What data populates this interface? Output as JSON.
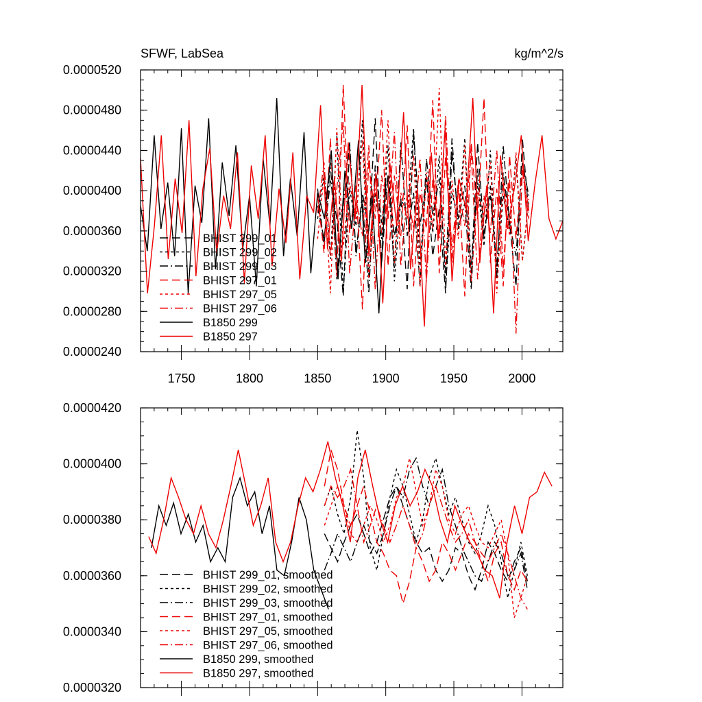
{
  "figure": {
    "title_left": "SFWF, LabSea",
    "title_right": "kg/m^2/s"
  },
  "colors": {
    "black": "#000000",
    "red": "#ee0000"
  },
  "chart_data": [
    {
      "type": "line",
      "panel": "top",
      "title": "SFWF, LabSea",
      "units": "kg/m^2/s",
      "xlim": [
        1720,
        2030
      ],
      "ylim": [
        2.4e-05,
        5.2e-05
      ],
      "x_ticks": [
        1750,
        1800,
        1850,
        1900,
        1950,
        2000
      ],
      "x_tick_labels": [
        "1750",
        "1800",
        "1850",
        "1900",
        "1950",
        "2000"
      ],
      "y_ticks": [
        2.4e-05,
        2.8e-05,
        3.2e-05,
        3.6e-05,
        4e-05,
        4.4e-05,
        4.8e-05,
        5.2e-05
      ],
      "y_tick_labels": [
        "0.0000240",
        "0.0000280",
        "0.0000320",
        "0.0000360",
        "0.0000400",
        "0.0000440",
        "0.0000480",
        "0.0000520"
      ],
      "legend_position": "lower-left",
      "series": [
        {
          "name": "BHIST 299_01",
          "color": "black",
          "dash": "long-dash",
          "x_start": 1850,
          "x_end": 2005,
          "values": [
            3.85e-05,
            3.52e-05,
            4.1e-05,
            3.72e-05,
            2.95e-05,
            4.45e-05,
            3.38e-05,
            3.98e-05,
            3.6e-05,
            4.72e-05,
            3.28e-05,
            4.15e-05,
            3.55e-05,
            3.92e-05,
            3.02e-05,
            4.58e-05,
            3.65e-05,
            4.12e-05,
            3.35e-05,
            3.82e-05,
            2.98e-05,
            4.38e-05,
            3.72e-05,
            4.05e-05,
            3.18e-05,
            4.48e-05,
            3.58e-05,
            3.95e-05,
            3.25e-05,
            4.18e-05,
            3.68e-05,
            3.05e-05,
            4.52e-05,
            3.78e-05
          ]
        },
        {
          "name": "BHIST 299_02",
          "color": "black",
          "dash": "short-dash",
          "x_start": 1850,
          "x_end": 2005,
          "values": [
            3.72e-05,
            4.18e-05,
            3.32e-05,
            4.55e-05,
            2.98e-05,
            4.02e-05,
            3.65e-05,
            4.7e-05,
            3.15e-05,
            3.98e-05,
            3.52e-05,
            4.45e-05,
            3.1e-05,
            3.92e-05,
            3.78e-05,
            4.62e-05,
            3.25e-05,
            4.15e-05,
            3.58e-05,
            4.35e-05,
            3.05e-05,
            3.98e-05,
            3.72e-05,
            4.52e-05,
            3.2e-05,
            4.08e-05,
            3.45e-05,
            4.4e-05,
            3.12e-05,
            3.95e-05,
            3.62e-05,
            4.32e-05,
            3.3e-05,
            3.9e-05
          ]
        },
        {
          "name": "BHIST 299_03",
          "color": "black",
          "dash": "dash-dot",
          "x_start": 1850,
          "x_end": 2005,
          "values": [
            4.02e-05,
            3.45e-05,
            4.28e-05,
            3.12e-05,
            3.85e-05,
            4.48e-05,
            3.35e-05,
            3.92e-05,
            2.98e-05,
            4.25e-05,
            3.68e-05,
            4.15e-05,
            3.22e-05,
            4.48e-05,
            3.55e-05,
            3.98e-05,
            3.05e-05,
            4.32e-05,
            3.75e-05,
            4.12e-05,
            3.18e-05,
            4.52e-05,
            3.62e-05,
            3.88e-05,
            3.02e-05,
            4.22e-05,
            3.52e-05,
            4.05e-05,
            3.15e-05,
            4.45e-05,
            3.68e-05,
            3.35e-05,
            4.28e-05,
            3.95e-05
          ]
        },
        {
          "name": "BHIST 297_01",
          "color": "red",
          "dash": "long-dash",
          "x_start": 1850,
          "x_end": 2005,
          "values": [
            3.95e-05,
            3.38e-05,
            4.52e-05,
            3.15e-05,
            5.05e-05,
            3.58e-05,
            4.05e-05,
            2.82e-05,
            4.3e-05,
            3.72e-05,
            4.8e-05,
            3.25e-05,
            4.15e-05,
            3.55e-05,
            4.65e-05,
            3.05e-05,
            3.98e-05,
            3.62e-05,
            4.9e-05,
            3.18e-05,
            4.35e-05,
            3.42e-05,
            4.1e-05,
            2.95e-05,
            4.48e-05,
            3.72e-05,
            4.92e-05,
            3.28e-05,
            4.02e-05,
            3.05e-05,
            4.35e-05,
            3.52e-05,
            4.25e-05,
            3.8e-05
          ]
        },
        {
          "name": "BHIST 297_05",
          "color": "red",
          "dash": "short-dash",
          "x_start": 1850,
          "x_end": 2005,
          "values": [
            3.52e-05,
            4.15e-05,
            2.98e-05,
            4.62e-05,
            3.45e-05,
            4.08e-05,
            3.72e-05,
            4.5e-05,
            3.12e-05,
            4.02e-05,
            3.58e-05,
            4.7e-05,
            3.28e-05,
            3.98e-05,
            3.72e-05,
            4.35e-05,
            3.05e-05,
            4.18e-05,
            3.62e-05,
            5.02e-05,
            3.25e-05,
            4.1e-05,
            3.52e-05,
            4.45e-05,
            3.1e-05,
            3.98e-05,
            3.75e-05,
            4.28e-05,
            2.98e-05,
            4.12e-05,
            3.55e-05,
            4.38e-05,
            3.3e-05,
            3.92e-05
          ]
        },
        {
          "name": "BHIST 297_06",
          "color": "red",
          "dash": "dash-dot",
          "x_start": 1850,
          "x_end": 2005,
          "values": [
            3.78e-05,
            4.28e-05,
            3.35e-05,
            4.02e-05,
            4.68e-05,
            3.18e-05,
            3.92e-05,
            3.55e-05,
            4.45e-05,
            3.02e-05,
            4.15e-05,
            3.72e-05,
            4.58e-05,
            3.25e-05,
            3.98e-05,
            3.62e-05,
            4.32e-05,
            3.1e-05,
            4.12e-05,
            3.52e-05,
            4.75e-05,
            3.28e-05,
            4.02e-05,
            3.65e-05,
            4.38e-05,
            3.12e-05,
            3.95e-05,
            3.58e-05,
            4.4e-05,
            3.22e-05,
            4.12e-05,
            2.58e-05,
            4.2e-05,
            3.72e-05
          ]
        },
        {
          "name": "B1850 299",
          "color": "black",
          "dash": "solid",
          "x_start": 1720,
          "x_end": 1900,
          "values": [
            3.85e-05,
            3.4e-05,
            4.55e-05,
            3.62e-05,
            4.08e-05,
            3.35e-05,
            4.62e-05,
            2.98e-05,
            4.05e-05,
            3.68e-05,
            4.72e-05,
            3.22e-05,
            4.28e-05,
            3.75e-05,
            4.45e-05,
            3.42e-05,
            3.95e-05,
            3.05e-05,
            4.32e-05,
            3.65e-05,
            4.92e-05,
            3.35e-05,
            4.12e-05,
            3.55e-05,
            4.58e-05,
            3.18e-05,
            3.98e-05,
            3.72e-05,
            4.4e-05,
            3.12e-05,
            4.2e-05,
            3.62e-05,
            4.5e-05,
            3.28e-05,
            3.95e-05,
            2.78e-05,
            4.1e-05
          ]
        },
        {
          "name": "B1850 297",
          "color": "red",
          "dash": "solid",
          "x_start": 1720,
          "x_end": 2030,
          "values": [
            4.32e-05,
            2.98e-05,
            3.65e-05,
            4.55e-05,
            3.32e-05,
            4.12e-05,
            3.58e-05,
            4.7e-05,
            3.15e-05,
            4.02e-05,
            4.42e-05,
            3.38e-05,
            3.95e-05,
            3.62e-05,
            4.38e-05,
            3.08e-05,
            4.25e-05,
            3.72e-05,
            4.55e-05,
            3.25e-05,
            4.02e-05,
            3.48e-05,
            4.38e-05,
            3.12e-05,
            3.95e-05,
            3.78e-05,
            4.85e-05,
            3.42e-05,
            4.12e-05,
            3.3e-05,
            4.48e-05,
            3.72e-05,
            5.05e-05,
            3.35e-05,
            4.18e-05,
            2.88e-05,
            4.28e-05,
            3.65e-05,
            4.78e-05,
            3.22e-05,
            4.02e-05,
            2.65e-05,
            4.38e-05,
            3.52e-05,
            4.62e-05,
            3.1e-05,
            4.12e-05,
            3.82e-05,
            4.92e-05,
            3.28e-05,
            4.05e-05,
            2.78e-05,
            4.35e-05,
            3.62e-05,
            4.02e-05,
            4.55e-05,
            3.5e-05,
            4.08e-05,
            4.55e-05,
            3.72e-05,
            3.52e-05,
            3.7e-05
          ]
        }
      ],
      "legend": [
        "BHIST 299_01",
        "BHIST 299_02",
        "BHIST 299_03",
        "BHIST 297_01",
        "BHIST 297_05",
        "BHIST 297_06",
        "B1850 299",
        "B1850 297"
      ]
    },
    {
      "type": "line",
      "panel": "bottom",
      "xlim": [
        1720,
        2030
      ],
      "ylim": [
        3.2e-05,
        4.2e-05
      ],
      "x_ticks": [
        1750,
        1800,
        1850,
        1900,
        1950,
        2000
      ],
      "y_ticks": [
        3.2e-05,
        3.4e-05,
        3.6e-05,
        3.8e-05,
        4e-05,
        4.2e-05
      ],
      "y_tick_labels": [
        "0.0000320",
        "0.0000340",
        "0.0000360",
        "0.0000380",
        "0.0000400",
        "0.0000420"
      ],
      "legend_position": "lower-left",
      "series": [
        {
          "name": "BHIST 299_01, smoothed",
          "color": "black",
          "dash": "long-dash",
          "x_start": 1855,
          "x_end": 2004,
          "values": [
            3.75e-05,
            3.7e-05,
            3.65e-05,
            3.72e-05,
            3.78e-05,
            3.82e-05,
            3.75e-05,
            3.68e-05,
            3.72e-05,
            3.8e-05,
            3.88e-05,
            3.92e-05,
            3.85e-05,
            3.78e-05,
            3.72e-05,
            3.68e-05,
            3.7e-05,
            3.62e-05,
            3.58e-05,
            3.62e-05,
            3.7e-05,
            3.68e-05,
            3.6e-05,
            3.55e-05,
            3.62e-05,
            3.72e-05,
            3.68e-05,
            3.62e-05,
            3.58e-05,
            3.65e-05,
            3.7e-05,
            3.58e-05
          ]
        },
        {
          "name": "BHIST 299_02, smoothed",
          "color": "black",
          "dash": "short-dash",
          "x_start": 1855,
          "x_end": 2004,
          "values": [
            3.85e-05,
            3.92e-05,
            3.82e-05,
            3.75e-05,
            3.88e-05,
            4.12e-05,
            3.95e-05,
            3.7e-05,
            3.62e-05,
            3.75e-05,
            3.88e-05,
            3.98e-05,
            3.92e-05,
            3.82e-05,
            3.72e-05,
            3.8e-05,
            3.95e-05,
            4.02e-05,
            3.92e-05,
            3.82e-05,
            3.88e-05,
            3.8e-05,
            3.72e-05,
            3.68e-05,
            3.75e-05,
            3.85e-05,
            3.78e-05,
            3.65e-05,
            3.52e-05,
            3.62e-05,
            3.72e-05,
            3.6e-05
          ]
        },
        {
          "name": "BHIST 299_03, smoothed",
          "color": "black",
          "dash": "dash-dot",
          "x_start": 1855,
          "x_end": 2004,
          "values": [
            3.62e-05,
            3.68e-05,
            3.75e-05,
            3.7e-05,
            3.65e-05,
            3.72e-05,
            3.78e-05,
            3.72e-05,
            3.68e-05,
            3.75e-05,
            3.85e-05,
            3.92e-05,
            3.88e-05,
            3.98e-05,
            4.02e-05,
            3.92e-05,
            3.85e-05,
            3.92e-05,
            3.98e-05,
            3.85e-05,
            3.78e-05,
            3.7e-05,
            3.65e-05,
            3.6e-05,
            3.58e-05,
            3.65e-05,
            3.72e-05,
            3.68e-05,
            3.6e-05,
            3.62e-05,
            3.68e-05,
            3.55e-05
          ]
        },
        {
          "name": "BHIST 297_01, smoothed",
          "color": "red",
          "dash": "long-dash",
          "x_start": 1855,
          "x_end": 2004,
          "values": [
            3.92e-05,
            4.05e-05,
            3.98e-05,
            3.85e-05,
            3.78e-05,
            3.85e-05,
            3.92e-05,
            3.82e-05,
            3.72e-05,
            3.68e-05,
            3.62e-05,
            3.6e-05,
            3.5e-05,
            3.58e-05,
            3.7e-05,
            3.65e-05,
            3.58e-05,
            3.62e-05,
            3.72e-05,
            3.68e-05,
            3.62e-05,
            3.68e-05,
            3.75e-05,
            3.72e-05,
            3.65e-05,
            3.58e-05,
            3.68e-05,
            3.72e-05,
            3.6e-05,
            3.55e-05,
            3.62e-05,
            3.58e-05
          ]
        },
        {
          "name": "BHIST 297_05, smoothed",
          "color": "red",
          "dash": "short-dash",
          "x_start": 1855,
          "x_end": 2004,
          "values": [
            3.78e-05,
            3.85e-05,
            3.92e-05,
            3.85e-05,
            3.75e-05,
            3.72e-05,
            3.78e-05,
            3.85e-05,
            3.8e-05,
            3.72e-05,
            3.78e-05,
            3.88e-05,
            3.92e-05,
            4.02e-05,
            3.9e-05,
            3.78e-05,
            3.85e-05,
            3.98e-05,
            3.92e-05,
            3.8e-05,
            3.75e-05,
            3.82e-05,
            3.85e-05,
            3.78e-05,
            3.72e-05,
            3.7e-05,
            3.75e-05,
            3.8e-05,
            3.68e-05,
            3.45e-05,
            3.52e-05,
            3.6e-05
          ]
        },
        {
          "name": "BHIST 297_06, smoothed",
          "color": "red",
          "dash": "dash-dot",
          "x_start": 1855,
          "x_end": 2004,
          "values": [
            3.85e-05,
            3.92e-05,
            3.88e-05,
            3.92e-05,
            3.98e-05,
            3.85e-05,
            3.72e-05,
            3.78e-05,
            3.85e-05,
            3.78e-05,
            3.72e-05,
            3.78e-05,
            3.85e-05,
            3.78e-05,
            3.7e-05,
            3.75e-05,
            3.85e-05,
            3.92e-05,
            3.85e-05,
            3.78e-05,
            3.72e-05,
            3.75e-05,
            3.8e-05,
            3.72e-05,
            3.68e-05,
            3.65e-05,
            3.7e-05,
            3.75e-05,
            3.68e-05,
            3.6e-05,
            3.52e-05,
            3.48e-05
          ]
        },
        {
          "name": "B1850 299, smoothed",
          "color": "black",
          "dash": "solid",
          "x_start": 1728,
          "x_end": 1858,
          "values": [
            3.7e-05,
            3.85e-05,
            3.78e-05,
            3.86e-05,
            3.75e-05,
            3.82e-05,
            3.72e-05,
            3.78e-05,
            3.65e-05,
            3.7e-05,
            3.65e-05,
            3.88e-05,
            3.95e-05,
            3.85e-05,
            3.9e-05,
            3.75e-05,
            3.85e-05,
            3.62e-05,
            3.6e-05,
            3.72e-05,
            3.88e-05,
            3.8e-05,
            3.62e-05,
            3.55e-05,
            3.48e-05
          ]
        },
        {
          "name": "B1850 297, smoothed",
          "color": "red",
          "dash": "solid",
          "x_start": 1726,
          "x_end": 2022,
          "values": [
            3.74e-05,
            3.68e-05,
            3.8e-05,
            3.95e-05,
            3.88e-05,
            3.8e-05,
            3.75e-05,
            3.85e-05,
            3.75e-05,
            3.7e-05,
            3.8e-05,
            3.92e-05,
            4.05e-05,
            3.92e-05,
            3.78e-05,
            3.85e-05,
            3.95e-05,
            3.72e-05,
            3.65e-05,
            3.72e-05,
            3.85e-05,
            3.95e-05,
            3.9e-05,
            3.98e-05,
            4.08e-05,
            3.95e-05,
            3.85e-05,
            3.72e-05,
            3.95e-05,
            4.05e-05,
            3.92e-05,
            3.8e-05,
            3.72e-05,
            3.85e-05,
            3.92e-05,
            3.85e-05,
            3.9e-05,
            3.98e-05,
            3.92e-05,
            3.8e-05,
            3.72e-05,
            3.85e-05,
            3.78e-05,
            3.72e-05,
            3.68e-05,
            3.62e-05,
            3.6e-05,
            3.52e-05,
            3.72e-05,
            3.85e-05,
            3.75e-05,
            3.88e-05,
            3.9e-05,
            3.97e-05,
            3.92e-05
          ]
        }
      ],
      "legend": [
        "BHIST 299_01, smoothed",
        "BHIST 299_02, smoothed",
        "BHIST 299_03, smoothed",
        "BHIST 297_01, smoothed",
        "BHIST 297_05, smoothed",
        "BHIST 297_06, smoothed",
        "B1850 299, smoothed",
        "B1850 297, smoothed"
      ]
    }
  ]
}
